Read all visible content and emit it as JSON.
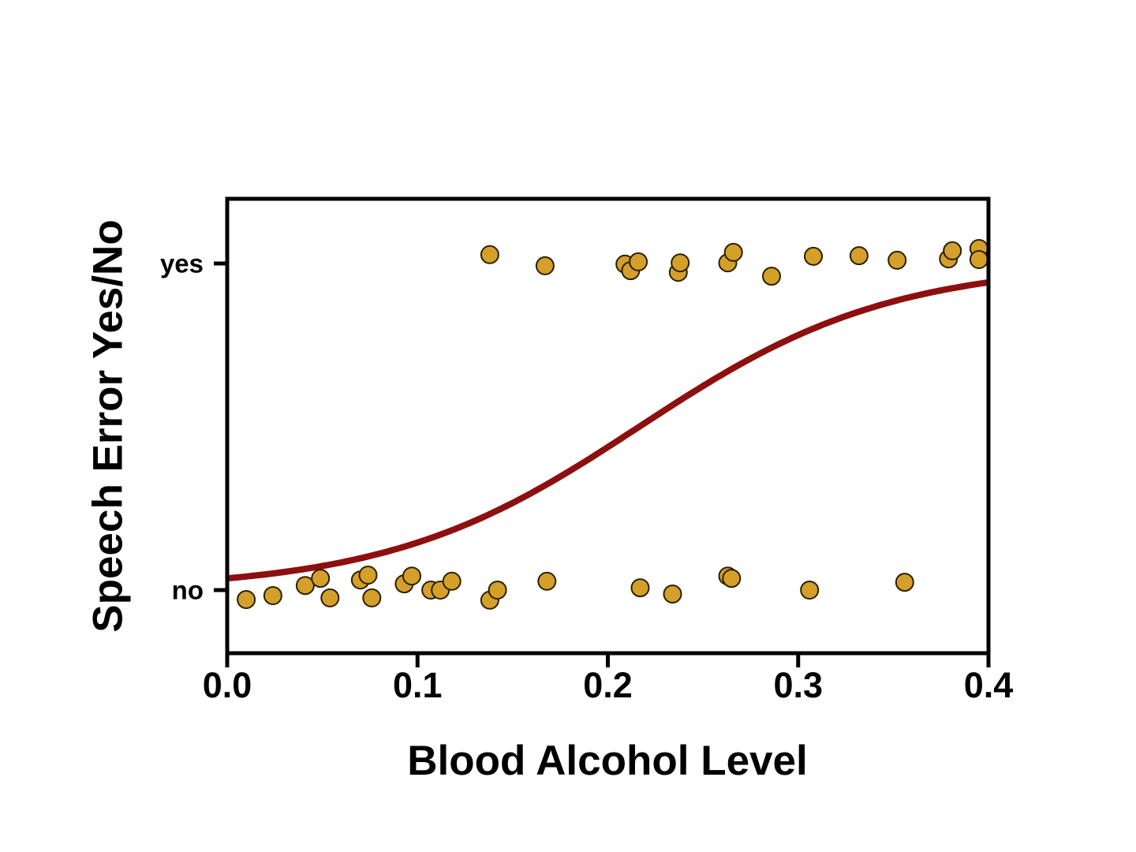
{
  "chart_data": {
    "type": "scatter",
    "subtype": "binary-logistic-fit",
    "title": "",
    "xlabel": "Blood Alcohol Level",
    "ylabel": "Speech Error Yes/No",
    "xlim": [
      0.0,
      0.4
    ],
    "x_ticks": [
      "0.0",
      "0.1",
      "0.2",
      "0.3",
      "0.4"
    ],
    "x_tick_values": [
      0.0,
      0.1,
      0.2,
      0.3,
      0.4
    ],
    "y_categories": [
      "no",
      "yes"
    ],
    "grid": false,
    "legend": "none",
    "series": [
      {
        "name": "no",
        "outcome": 0,
        "points": [
          [
            0.01,
            -0.029
          ],
          [
            0.024,
            -0.017
          ],
          [
            0.041,
            0.014
          ],
          [
            0.049,
            0.036
          ],
          [
            0.054,
            -0.024
          ],
          [
            0.07,
            0.031
          ],
          [
            0.074,
            0.046
          ],
          [
            0.076,
            -0.024
          ],
          [
            0.093,
            0.019
          ],
          [
            0.097,
            0.043
          ],
          [
            0.107,
            0.0
          ],
          [
            0.112,
            0.0
          ],
          [
            0.118,
            0.027
          ],
          [
            0.138,
            -0.031
          ],
          [
            0.142,
            0.0
          ],
          [
            0.168,
            0.027
          ],
          [
            0.217,
            0.007
          ],
          [
            0.234,
            -0.012
          ],
          [
            0.263,
            0.043
          ],
          [
            0.265,
            0.036
          ],
          [
            0.306,
            0.0
          ],
          [
            0.356,
            0.024
          ]
        ]
      },
      {
        "name": "yes",
        "outcome": 1,
        "points": [
          [
            0.138,
            1.027
          ],
          [
            0.167,
            0.993
          ],
          [
            0.209,
            0.998
          ],
          [
            0.212,
            0.978
          ],
          [
            0.216,
            1.005
          ],
          [
            0.237,
            0.973
          ],
          [
            0.238,
            1.002
          ],
          [
            0.263,
            1.002
          ],
          [
            0.266,
            1.034
          ],
          [
            0.286,
            0.961
          ],
          [
            0.308,
            1.022
          ],
          [
            0.332,
            1.024
          ],
          [
            0.352,
            1.01
          ],
          [
            0.379,
            1.014
          ],
          [
            0.381,
            1.039
          ],
          [
            0.395,
            1.046
          ],
          [
            0.395,
            1.012
          ]
        ]
      }
    ],
    "fit_curve": {
      "model": "logistic",
      "intercept": -3.29,
      "slope": 15.2,
      "x_min": 0.0,
      "x_max": 0.4
    },
    "colors": {
      "marker_fill": "#D4A02A",
      "marker_edge": "#2A1F00",
      "curve": "#8E0F0F",
      "axis": "#000000"
    }
  }
}
